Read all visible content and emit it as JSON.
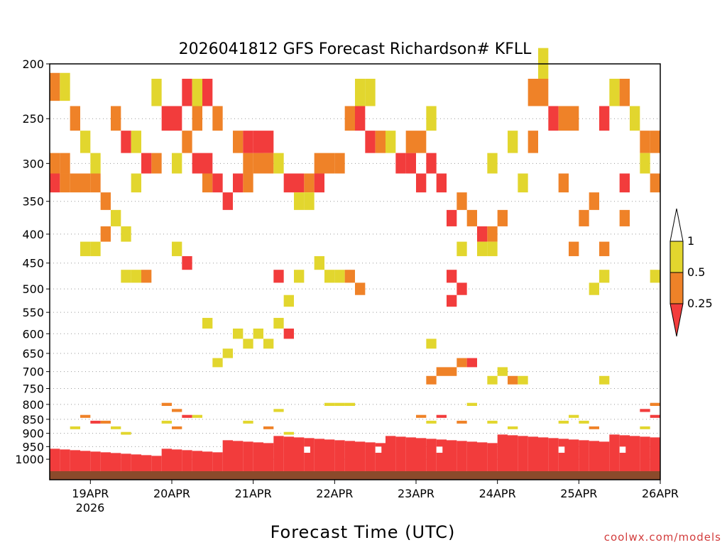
{
  "chart_data": {
    "type": "heatmap",
    "title": "2026041812 GFS Forecast Richardson# KFLL",
    "xlabel": "Forecast Time (UTC)",
    "credit": "coolwx.com/models",
    "y_axis": {
      "scale": "pressure (log)",
      "ticks": [
        200,
        250,
        300,
        350,
        400,
        450,
        500,
        550,
        600,
        650,
        700,
        750,
        800,
        850,
        900,
        950,
        1000
      ],
      "range": [
        200,
        1050
      ],
      "inverted": true,
      "grid": "dotted"
    },
    "x_axis": {
      "range_hours": [
        0,
        180
      ],
      "tick_labels": [
        "19APR",
        "20APR",
        "21APR",
        "22APR",
        "23APR",
        "24APR",
        "25APR",
        "26APR"
      ],
      "tick_hours": [
        12,
        36,
        60,
        84,
        108,
        132,
        156,
        180
      ],
      "year_label": "2026"
    },
    "legend": {
      "placement": "right",
      "labels": [
        "1",
        "0.5",
        "0.25"
      ],
      "bins": [
        {
          "range": "0.5-1",
          "color": "#e2d62e"
        },
        {
          "range": "0.25-0.5",
          "color": "#ef8228"
        },
        {
          "range": "<0.25",
          "color": "#f23c3c"
        }
      ]
    },
    "colors": {
      "yellow": "#e2d62e",
      "orange": "#ef8228",
      "red": "#f23c3c",
      "ground": "#8b4a2b"
    },
    "cell_size": {
      "hours": 3,
      "pressure_levels": "25 hPa (upper), 10 hPa (lower)"
    },
    "cells": [
      {
        "t": 0,
        "p": 220,
        "c": "orange"
      },
      {
        "t": 3,
        "p": 220,
        "c": "yellow"
      },
      {
        "t": 0,
        "p": 300,
        "c": "orange"
      },
      {
        "t": 3,
        "p": 300,
        "c": "orange"
      },
      {
        "t": 0,
        "p": 325,
        "c": "red"
      },
      {
        "t": 3,
        "p": 325,
        "c": "orange"
      },
      {
        "t": 6,
        "p": 325,
        "c": "orange"
      },
      {
        "t": 9,
        "p": 325,
        "c": "orange"
      },
      {
        "t": 12,
        "p": 325,
        "c": "orange"
      },
      {
        "t": 6,
        "p": 250,
        "c": "orange"
      },
      {
        "t": 9,
        "p": 275,
        "c": "yellow"
      },
      {
        "t": 12,
        "p": 300,
        "c": "yellow"
      },
      {
        "t": 15,
        "p": 350,
        "c": "orange"
      },
      {
        "t": 18,
        "p": 375,
        "c": "yellow"
      },
      {
        "t": 15,
        "p": 400,
        "c": "orange"
      },
      {
        "t": 9,
        "p": 425,
        "c": "yellow"
      },
      {
        "t": 12,
        "p": 425,
        "c": "yellow"
      },
      {
        "t": 21,
        "p": 400,
        "c": "yellow"
      },
      {
        "t": 18,
        "p": 250,
        "c": "orange"
      },
      {
        "t": 21,
        "p": 275,
        "c": "red"
      },
      {
        "t": 24,
        "p": 275,
        "c": "yellow"
      },
      {
        "t": 27,
        "p": 300,
        "c": "red"
      },
      {
        "t": 30,
        "p": 300,
        "c": "orange"
      },
      {
        "t": 24,
        "p": 325,
        "c": "yellow"
      },
      {
        "t": 21,
        "p": 475,
        "c": "yellow"
      },
      {
        "t": 24,
        "p": 475,
        "c": "yellow"
      },
      {
        "t": 27,
        "p": 475,
        "c": "orange"
      },
      {
        "t": 30,
        "p": 225,
        "c": "yellow"
      },
      {
        "t": 33,
        "p": 250,
        "c": "red"
      },
      {
        "t": 36,
        "p": 250,
        "c": "red"
      },
      {
        "t": 39,
        "p": 225,
        "c": "red"
      },
      {
        "t": 42,
        "p": 250,
        "c": "orange"
      },
      {
        "t": 39,
        "p": 275,
        "c": "orange"
      },
      {
        "t": 36,
        "p": 300,
        "c": "yellow"
      },
      {
        "t": 42,
        "p": 300,
        "c": "red"
      },
      {
        "t": 45,
        "p": 300,
        "c": "red"
      },
      {
        "t": 45,
        "p": 325,
        "c": "orange"
      },
      {
        "t": 48,
        "p": 325,
        "c": "red"
      },
      {
        "t": 42,
        "p": 225,
        "c": "yellow"
      },
      {
        "t": 45,
        "p": 225,
        "c": "red"
      },
      {
        "t": 48,
        "p": 250,
        "c": "orange"
      },
      {
        "t": 36,
        "p": 425,
        "c": "yellow"
      },
      {
        "t": 39,
        "p": 450,
        "c": "red"
      },
      {
        "t": 54,
        "p": 275,
        "c": "orange"
      },
      {
        "t": 57,
        "p": 300,
        "c": "orange"
      },
      {
        "t": 60,
        "p": 300,
        "c": "orange"
      },
      {
        "t": 57,
        "p": 275,
        "c": "red"
      },
      {
        "t": 60,
        "p": 275,
        "c": "red"
      },
      {
        "t": 63,
        "p": 275,
        "c": "red"
      },
      {
        "t": 63,
        "p": 300,
        "c": "orange"
      },
      {
        "t": 54,
        "p": 325,
        "c": "red"
      },
      {
        "t": 51,
        "p": 350,
        "c": "red"
      },
      {
        "t": 57,
        "p": 325,
        "c": "orange"
      },
      {
        "t": 66,
        "p": 300,
        "c": "yellow"
      },
      {
        "t": 69,
        "p": 325,
        "c": "red"
      },
      {
        "t": 72,
        "p": 325,
        "c": "red"
      },
      {
        "t": 75,
        "p": 325,
        "c": "orange"
      },
      {
        "t": 78,
        "p": 325,
        "c": "red"
      },
      {
        "t": 81,
        "p": 300,
        "c": "orange"
      },
      {
        "t": 84,
        "p": 300,
        "c": "orange"
      },
      {
        "t": 78,
        "p": 300,
        "c": "orange"
      },
      {
        "t": 75,
        "p": 350,
        "c": "yellow"
      },
      {
        "t": 72,
        "p": 350,
        "c": "yellow"
      },
      {
        "t": 87,
        "p": 250,
        "c": "orange"
      },
      {
        "t": 90,
        "p": 250,
        "c": "red"
      },
      {
        "t": 93,
        "p": 275,
        "c": "red"
      },
      {
        "t": 96,
        "p": 275,
        "c": "orange"
      },
      {
        "t": 90,
        "p": 225,
        "c": "yellow"
      },
      {
        "t": 93,
        "p": 225,
        "c": "yellow"
      },
      {
        "t": 99,
        "p": 275,
        "c": "yellow"
      },
      {
        "t": 102,
        "p": 300,
        "c": "red"
      },
      {
        "t": 105,
        "p": 300,
        "c": "red"
      },
      {
        "t": 108,
        "p": 325,
        "c": "red"
      },
      {
        "t": 111,
        "p": 300,
        "c": "red"
      },
      {
        "t": 114,
        "p": 325,
        "c": "red"
      },
      {
        "t": 108,
        "p": 275,
        "c": "orange"
      },
      {
        "t": 111,
        "p": 250,
        "c": "yellow"
      },
      {
        "t": 105,
        "p": 275,
        "c": "orange"
      },
      {
        "t": 84,
        "p": 475,
        "c": "yellow"
      },
      {
        "t": 87,
        "p": 475,
        "c": "orange"
      },
      {
        "t": 90,
        "p": 500,
        "c": "orange"
      },
      {
        "t": 78,
        "p": 450,
        "c": "yellow"
      },
      {
        "t": 81,
        "p": 475,
        "c": "yellow"
      },
      {
        "t": 66,
        "p": 475,
        "c": "red"
      },
      {
        "t": 69,
        "p": 525,
        "c": "yellow"
      },
      {
        "t": 72,
        "p": 475,
        "c": "yellow"
      },
      {
        "t": 117,
        "p": 375,
        "c": "red"
      },
      {
        "t": 120,
        "p": 350,
        "c": "orange"
      },
      {
        "t": 123,
        "p": 375,
        "c": "orange"
      },
      {
        "t": 126,
        "p": 400,
        "c": "red"
      },
      {
        "t": 129,
        "p": 400,
        "c": "orange"
      },
      {
        "t": 132,
        "p": 375,
        "c": "orange"
      },
      {
        "t": 120,
        "p": 425,
        "c": "yellow"
      },
      {
        "t": 126,
        "p": 425,
        "c": "yellow"
      },
      {
        "t": 129,
        "p": 425,
        "c": "yellow"
      },
      {
        "t": 117,
        "p": 475,
        "c": "red"
      },
      {
        "t": 120,
        "p": 500,
        "c": "red"
      },
      {
        "t": 117,
        "p": 525,
        "c": "red"
      },
      {
        "t": 144,
        "p": 225,
        "c": "orange"
      },
      {
        "t": 147,
        "p": 250,
        "c": "red"
      },
      {
        "t": 150,
        "p": 250,
        "c": "orange"
      },
      {
        "t": 153,
        "p": 250,
        "c": "orange"
      },
      {
        "t": 144,
        "p": 200,
        "c": "yellow"
      },
      {
        "t": 141,
        "p": 225,
        "c": "orange"
      },
      {
        "t": 162,
        "p": 250,
        "c": "red"
      },
      {
        "t": 165,
        "p": 225,
        "c": "yellow"
      },
      {
        "t": 168,
        "p": 225,
        "c": "orange"
      },
      {
        "t": 171,
        "p": 250,
        "c": "yellow"
      },
      {
        "t": 174,
        "p": 275,
        "c": "orange"
      },
      {
        "t": 177,
        "p": 275,
        "c": "orange"
      },
      {
        "t": 174,
        "p": 300,
        "c": "yellow"
      },
      {
        "t": 177,
        "p": 325,
        "c": "orange"
      },
      {
        "t": 168,
        "p": 325,
        "c": "red"
      },
      {
        "t": 159,
        "p": 350,
        "c": "orange"
      },
      {
        "t": 156,
        "p": 375,
        "c": "orange"
      },
      {
        "t": 150,
        "p": 325,
        "c": "orange"
      },
      {
        "t": 168,
        "p": 375,
        "c": "orange"
      },
      {
        "t": 162,
        "p": 425,
        "c": "orange"
      },
      {
        "t": 153,
        "p": 425,
        "c": "orange"
      },
      {
        "t": 177,
        "p": 475,
        "c": "yellow"
      },
      {
        "t": 162,
        "p": 475,
        "c": "yellow"
      },
      {
        "t": 159,
        "p": 500,
        "c": "yellow"
      },
      {
        "t": 135,
        "p": 275,
        "c": "yellow"
      },
      {
        "t": 141,
        "p": 275,
        "c": "orange"
      },
      {
        "t": 129,
        "p": 300,
        "c": "yellow"
      },
      {
        "t": 138,
        "p": 325,
        "c": "yellow"
      },
      {
        "t": 54,
        "p": 600,
        "c": "yellow"
      },
      {
        "t": 57,
        "p": 625,
        "c": "yellow"
      },
      {
        "t": 51,
        "p": 650,
        "c": "yellow"
      },
      {
        "t": 48,
        "p": 675,
        "c": "yellow"
      },
      {
        "t": 45,
        "p": 575,
        "c": "yellow"
      },
      {
        "t": 60,
        "p": 600,
        "c": "yellow"
      },
      {
        "t": 63,
        "p": 625,
        "c": "yellow"
      },
      {
        "t": 66,
        "p": 575,
        "c": "yellow"
      },
      {
        "t": 69,
        "p": 600,
        "c": "red"
      },
      {
        "t": 111,
        "p": 625,
        "c": "yellow"
      },
      {
        "t": 114,
        "p": 700,
        "c": "orange"
      },
      {
        "t": 117,
        "p": 700,
        "c": "orange"
      },
      {
        "t": 120,
        "p": 675,
        "c": "orange"
      },
      {
        "t": 123,
        "p": 675,
        "c": "red"
      },
      {
        "t": 111,
        "p": 725,
        "c": "orange"
      },
      {
        "t": 129,
        "p": 725,
        "c": "yellow"
      },
      {
        "t": 132,
        "p": 700,
        "c": "yellow"
      },
      {
        "t": 135,
        "p": 725,
        "c": "orange"
      },
      {
        "t": 138,
        "p": 725,
        "c": "yellow"
      },
      {
        "t": 162,
        "p": 725,
        "c": "yellow"
      },
      {
        "t": 33,
        "p": 800,
        "c": "orange"
      },
      {
        "t": 36,
        "p": 820,
        "c": "orange"
      },
      {
        "t": 39,
        "p": 840,
        "c": "red"
      },
      {
        "t": 42,
        "p": 840,
        "c": "yellow"
      },
      {
        "t": 33,
        "p": 860,
        "c": "yellow"
      },
      {
        "t": 36,
        "p": 880,
        "c": "orange"
      },
      {
        "t": 9,
        "p": 840,
        "c": "orange"
      },
      {
        "t": 12,
        "p": 860,
        "c": "red"
      },
      {
        "t": 15,
        "p": 860,
        "c": "orange"
      },
      {
        "t": 18,
        "p": 880,
        "c": "yellow"
      },
      {
        "t": 6,
        "p": 880,
        "c": "yellow"
      },
      {
        "t": 21,
        "p": 900,
        "c": "yellow"
      },
      {
        "t": 57,
        "p": 860,
        "c": "yellow"
      },
      {
        "t": 63,
        "p": 880,
        "c": "orange"
      },
      {
        "t": 66,
        "p": 820,
        "c": "yellow"
      },
      {
        "t": 69,
        "p": 900,
        "c": "yellow"
      },
      {
        "t": 72,
        "p": 940,
        "c": "yellow"
      },
      {
        "t": 81,
        "p": 800,
        "c": "yellow"
      },
      {
        "t": 84,
        "p": 800,
        "c": "yellow"
      },
      {
        "t": 87,
        "p": 800,
        "c": "yellow"
      },
      {
        "t": 108,
        "p": 840,
        "c": "orange"
      },
      {
        "t": 111,
        "p": 860,
        "c": "yellow"
      },
      {
        "t": 114,
        "p": 840,
        "c": "red"
      },
      {
        "t": 120,
        "p": 860,
        "c": "orange"
      },
      {
        "t": 123,
        "p": 800,
        "c": "yellow"
      },
      {
        "t": 129,
        "p": 860,
        "c": "yellow"
      },
      {
        "t": 135,
        "p": 880,
        "c": "yellow"
      },
      {
        "t": 150,
        "p": 860,
        "c": "yellow"
      },
      {
        "t": 153,
        "p": 840,
        "c": "yellow"
      },
      {
        "t": 156,
        "p": 860,
        "c": "yellow"
      },
      {
        "t": 159,
        "p": 880,
        "c": "orange"
      },
      {
        "t": 177,
        "p": 800,
        "c": "orange"
      },
      {
        "t": 177,
        "p": 840,
        "c": "red"
      },
      {
        "t": 174,
        "p": 820,
        "c": "red"
      },
      {
        "t": 174,
        "p": 880,
        "c": "yellow"
      }
    ],
    "boundary_layer_red_top_hpa": 950,
    "ground_bar_hpa": 1040
  }
}
